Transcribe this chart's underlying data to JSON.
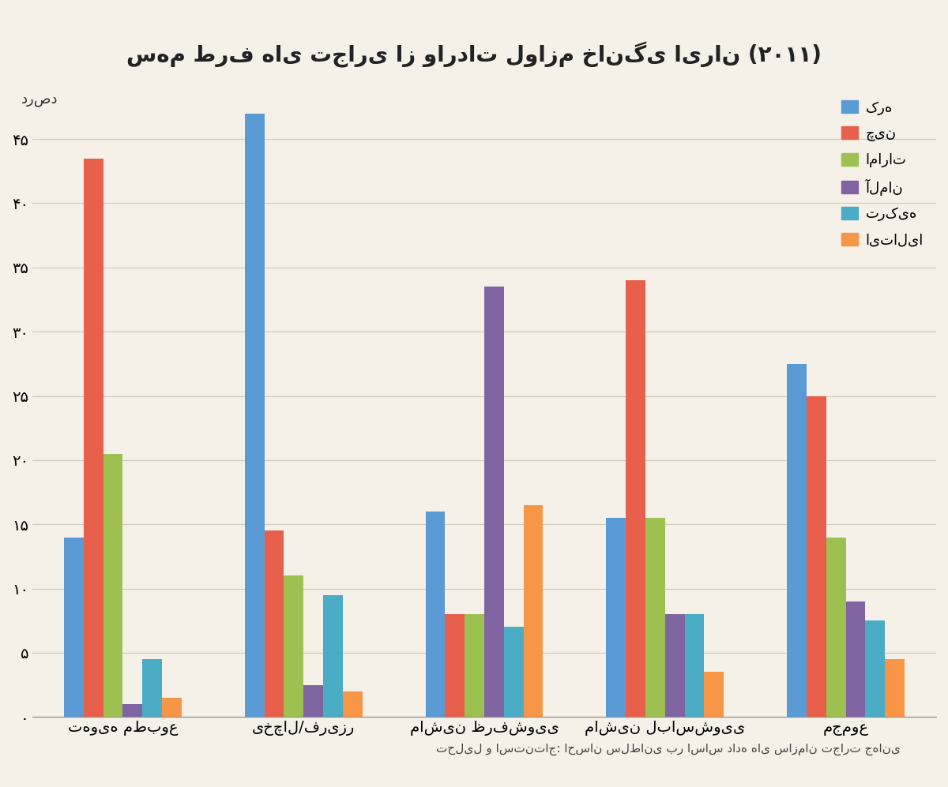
{
  "title": "سهم طرف های تجاری از واردات لوازم خانگی ایران (۲۰۱۱)",
  "ylabel": "درصد",
  "categories": [
    "تهویه مطبوع",
    "یخچال/فریزر",
    "ماشین ظرفشویی",
    "ماشین لباسشویی",
    "مجموع"
  ],
  "legend_labels": [
    "کره",
    "چین",
    "امارات",
    "آلمان",
    "ترکیه",
    "ایتالیا"
  ],
  "series": {
    "کره": [
      14,
      47,
      16,
      15.5,
      27.5
    ],
    "چین": [
      43.5,
      14.5,
      8,
      34,
      25
    ],
    "امارات": [
      20.5,
      11,
      8,
      15.5,
      14
    ],
    "آلمان": [
      1,
      2.5,
      33.5,
      8,
      9
    ],
    "ترکیه": [
      4.5,
      9.5,
      7,
      8,
      7.5
    ],
    "ایتالیا": [
      1.5,
      2,
      16.5,
      3.5,
      4.5
    ]
  },
  "colors": [
    "#5B9BD5",
    "#E8604C",
    "#9DC050",
    "#8064A2",
    "#4BACC6",
    "#F79646"
  ],
  "ylim": [
    0,
    50
  ],
  "yticks": [
    0,
    5,
    10,
    15,
    20,
    25,
    30,
    35,
    40,
    45
  ],
  "ytick_labels": [
    "۰",
    "۵",
    "۱۰",
    "۱۵",
    "۲۰",
    "۲۵",
    "۳۰",
    "۳۵",
    "۴۰",
    "۴۵"
  ],
  "background_color": "#F5F0E8",
  "grid_color": "#D0C8B8",
  "source_text": "تحلیل و استنتاج: احسان سلطانی بر اساس داده های سازمان تجارت جهانی"
}
